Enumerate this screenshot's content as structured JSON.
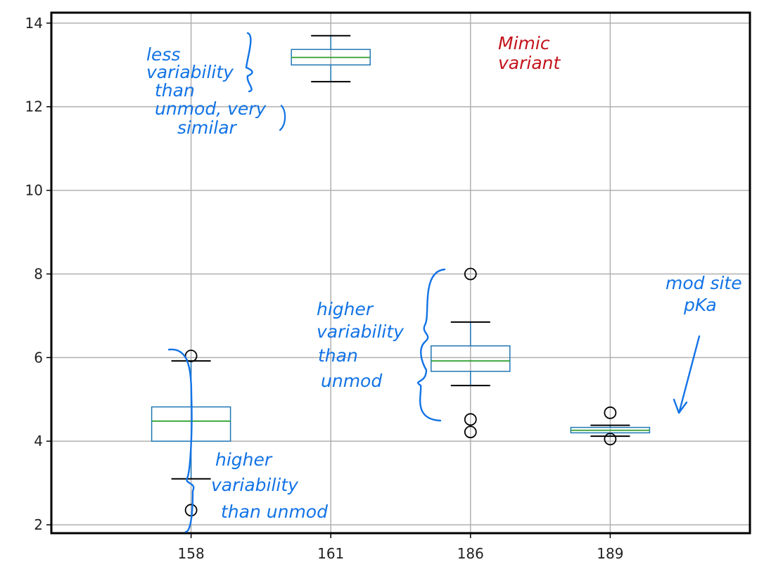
{
  "chart_data": {
    "type": "box",
    "categories": [
      "158",
      "161",
      "186",
      "189"
    ],
    "ylim": [
      1.8,
      14.25
    ],
    "yticks": [
      2,
      4,
      6,
      8,
      10,
      12,
      14
    ],
    "grid": true,
    "colors": {
      "box": "#1f77b4",
      "median": "#2ca02c",
      "whisker": "#1f77b4",
      "cap": "#000000",
      "flier": "#000000",
      "grid": "#b0b0b0",
      "annotation": "#1273e6",
      "annotation_red": "#c4141c"
    },
    "boxes": [
      {
        "label": "158",
        "whislo": 3.1,
        "q1": 4.0,
        "med": 4.48,
        "q3": 4.82,
        "whishi": 5.92,
        "fliers": [
          2.35,
          6.04
        ]
      },
      {
        "label": "161",
        "whislo": 12.6,
        "q1": 13.0,
        "med": 13.18,
        "q3": 13.37,
        "whishi": 13.7,
        "fliers": []
      },
      {
        "label": "186",
        "whislo": 5.33,
        "q1": 5.67,
        "med": 5.92,
        "q3": 6.28,
        "whishi": 6.85,
        "fliers": [
          4.22,
          4.52,
          8.0
        ]
      },
      {
        "label": "189",
        "whislo": 4.12,
        "q1": 4.2,
        "med": 4.26,
        "q3": 4.33,
        "whishi": 4.38,
        "fliers": [
          4.05,
          4.68
        ]
      }
    ],
    "annotations": [
      {
        "lines": [
          "less",
          "variability",
          "than",
          "unmod, very",
          "similar"
        ],
        "color": "blue"
      },
      {
        "lines": [
          "Mimic",
          "variant"
        ],
        "color": "red"
      },
      {
        "lines": [
          "higher",
          "variability",
          "than",
          "unmod"
        ],
        "color": "blue"
      },
      {
        "lines": [
          "mod site",
          "pKa"
        ],
        "color": "blue"
      },
      {
        "lines": [
          "higher",
          "variability",
          "than unmod"
        ],
        "color": "blue"
      }
    ]
  }
}
